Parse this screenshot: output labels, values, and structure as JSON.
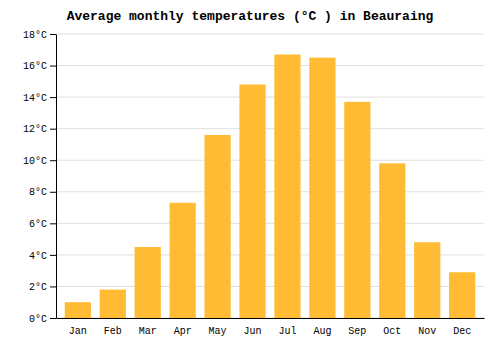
{
  "chart_data": {
    "type": "bar",
    "title": "Average monthly temperatures (°C ) in Beauraing",
    "categories": [
      "Jan",
      "Feb",
      "Mar",
      "Apr",
      "May",
      "Jun",
      "Jul",
      "Aug",
      "Sep",
      "Oct",
      "Nov",
      "Dec"
    ],
    "values": [
      1.0,
      1.8,
      4.5,
      7.3,
      11.6,
      14.8,
      16.7,
      16.5,
      13.7,
      9.8,
      4.8,
      2.9
    ],
    "color": "#FFBB33",
    "ylim": [
      0,
      18
    ],
    "yticks": [
      {
        "value": 0,
        "label": "0°C"
      },
      {
        "value": 2,
        "label": "2°C"
      },
      {
        "value": 4,
        "label": "4°C"
      },
      {
        "value": 6,
        "label": "6°C"
      },
      {
        "value": 8,
        "label": "8°C"
      },
      {
        "value": 10,
        "label": "10°C"
      },
      {
        "value": 12,
        "label": "12°C"
      },
      {
        "value": 14,
        "label": "14°C"
      },
      {
        "value": 16,
        "label": "16°C"
      },
      {
        "value": 18,
        "label": "18°C"
      }
    ],
    "grid": true
  }
}
